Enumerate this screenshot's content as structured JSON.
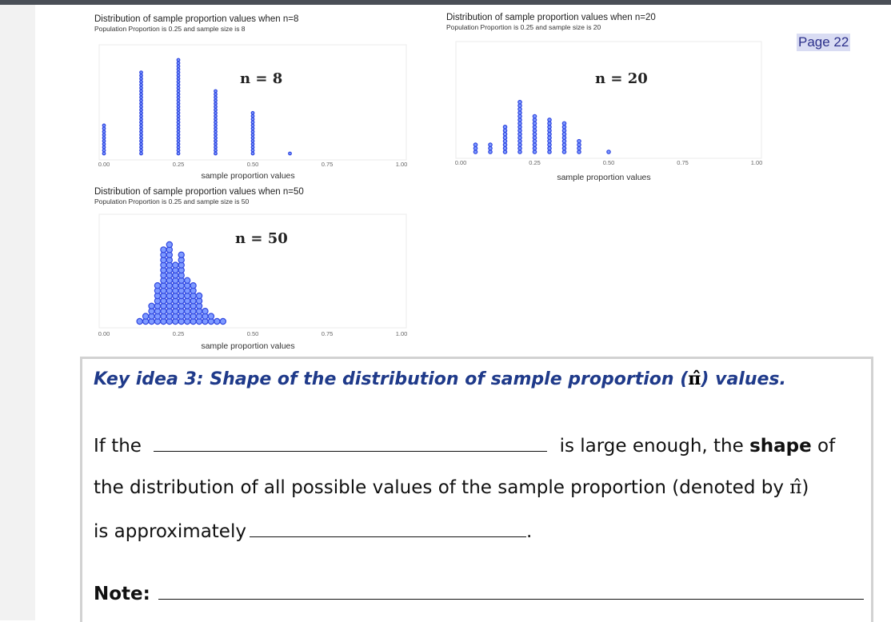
{
  "page_label": "Page 22",
  "colors": {
    "dot": "#2f46e0",
    "dot_fill": "#7f9bff",
    "title": "#1f3a8a",
    "axis_text": "#666666"
  },
  "chart_data": [
    {
      "type": "scatter",
      "title": "Distribution of sample proportion values when n=8",
      "subtitle": "Population Proportion is 0.25 and sample size is 8",
      "annotation": "n = 8",
      "xlabel": "sample proportion values",
      "x_ticks": [
        "0.00",
        "0.25",
        "0.50",
        "0.75",
        "1.00"
      ],
      "xlim": [
        0,
        1
      ],
      "x": [
        0.0,
        0.125,
        0.25,
        0.375,
        0.5,
        0.625
      ],
      "counts": [
        10,
        27,
        31,
        21,
        14,
        1
      ]
    },
    {
      "type": "scatter",
      "title": "Distribution of sample proportion values when n=20",
      "subtitle": "Population Proportion is 0.25 and sample size is 20",
      "annotation": "n = 20",
      "xlabel": "sample proportion values",
      "x_ticks": [
        "0.00",
        "0.25",
        "0.50",
        "0.75",
        "1.00"
      ],
      "xlim": [
        0,
        1
      ],
      "x": [
        0.05,
        0.1,
        0.15,
        0.2,
        0.25,
        0.3,
        0.35,
        0.4,
        0.5
      ],
      "counts": [
        3,
        3,
        8,
        15,
        11,
        10,
        9,
        4,
        1
      ]
    },
    {
      "type": "scatter",
      "title": "Distribution of sample proportion values when n=50",
      "subtitle": "Population Proportion is 0.25 and sample size is 50",
      "annotation": "n = 50",
      "xlabel": "sample proportion values",
      "x_ticks": [
        "0.00",
        "0.25",
        "0.50",
        "0.75",
        "1.00"
      ],
      "xlim": [
        0,
        1
      ],
      "x": [
        0.12,
        0.14,
        0.16,
        0.18,
        0.2,
        0.22,
        0.24,
        0.26,
        0.28,
        0.3,
        0.32,
        0.34,
        0.36,
        0.38,
        0.4
      ],
      "counts": [
        1,
        2,
        4,
        8,
        15,
        16,
        12,
        14,
        9,
        8,
        6,
        3,
        2,
        1,
        1
      ]
    }
  ],
  "key_idea": {
    "title_prefix": "Key idea 3: Shape of the distribution of sample proportion (",
    "title_symbol": "π̂",
    "title_suffix": ") values.",
    "line1_start": "If the",
    "line1_mid": "is large enough, the ",
    "line1_bold": "shape",
    "line1_end": " of",
    "line2": "the distribution of all possible values of the sample proportion (denoted by ",
    "line2_symbol": "π̂",
    "line2_end": ")",
    "line3_start": "is approximately",
    "line3_end": ".",
    "note_label": "Note:"
  }
}
